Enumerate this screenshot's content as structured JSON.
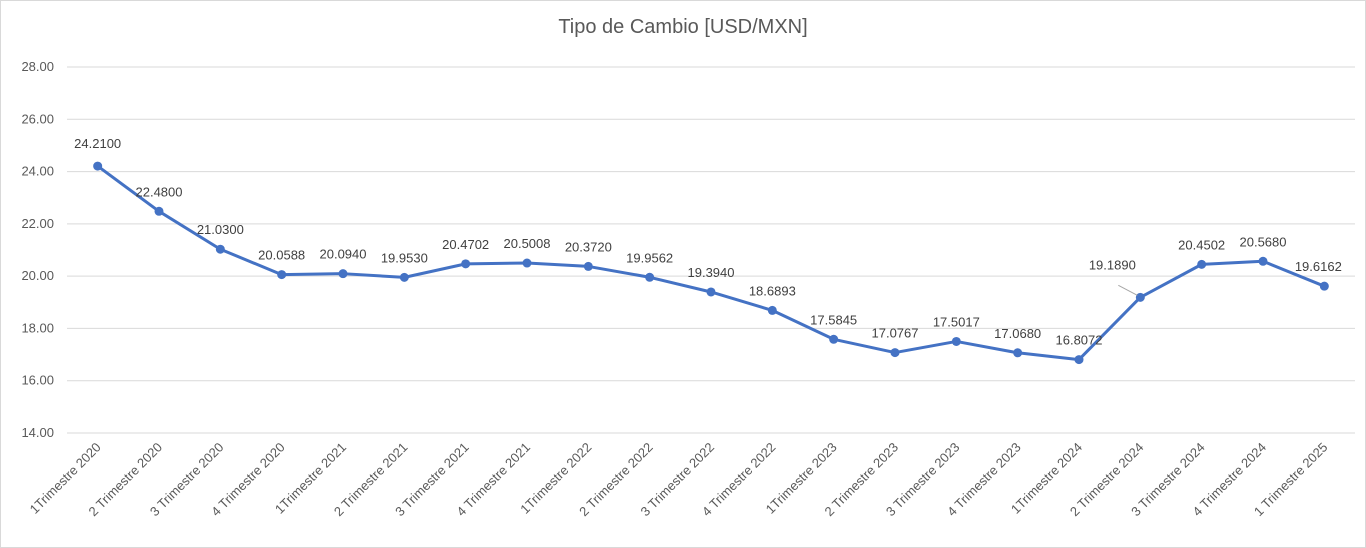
{
  "chart_data": {
    "type": "line",
    "title": "Tipo de Cambio [USD/MXN]",
    "xlabel": "",
    "ylabel": "",
    "ylim": [
      14,
      28
    ],
    "yticks": [
      "14.00",
      "16.00",
      "18.00",
      "20.00",
      "22.00",
      "24.00",
      "26.00",
      "28.00"
    ],
    "grid": true,
    "legend": "none",
    "line_color": "#4472c4",
    "categories": [
      "1Trimestre 2020",
      "2 Trimestre 2020",
      "3 Trimestre 2020",
      "4 Trimestre 2020",
      "1Trimestre 2021",
      "2 Trimestre 2021",
      "3 Trimestre 2021",
      "4 Trimestre 2021",
      "1Trimestre 2022",
      "2 Trimestre 2022",
      "3 Trimestre 2022",
      "4 Trimestre 2022",
      "1Trimestre 2023",
      "2 Trimestre 2023",
      "3 Trimestre 2023",
      "4 Trimestre 2023",
      "1Trimestre 2024",
      "2 Trimestre 2024",
      "3 Trimestre 2024",
      "4 Trimestre 2024",
      "1 Trimestre 2025"
    ],
    "series": [
      {
        "values": [
          24.21,
          22.48,
          21.03,
          20.0588,
          20.094,
          19.953,
          20.4702,
          20.5008,
          20.372,
          19.9562,
          19.394,
          18.6893,
          17.5845,
          17.0767,
          17.5017,
          17.068,
          16.8072,
          19.189,
          20.4502,
          20.568,
          19.6162
        ],
        "labels": [
          "24.2100",
          "22.4800",
          "21.0300",
          "20.0588",
          "20.0940",
          "19.9530",
          "20.4702",
          "20.5008",
          "20.3720",
          "19.9562",
          "19.3940",
          "18.6893",
          "17.5845",
          "17.0767",
          "17.5017",
          "17.0680",
          "16.8072",
          "19.1890",
          "20.4502",
          "20.5680",
          "19.6162"
        ]
      }
    ]
  }
}
